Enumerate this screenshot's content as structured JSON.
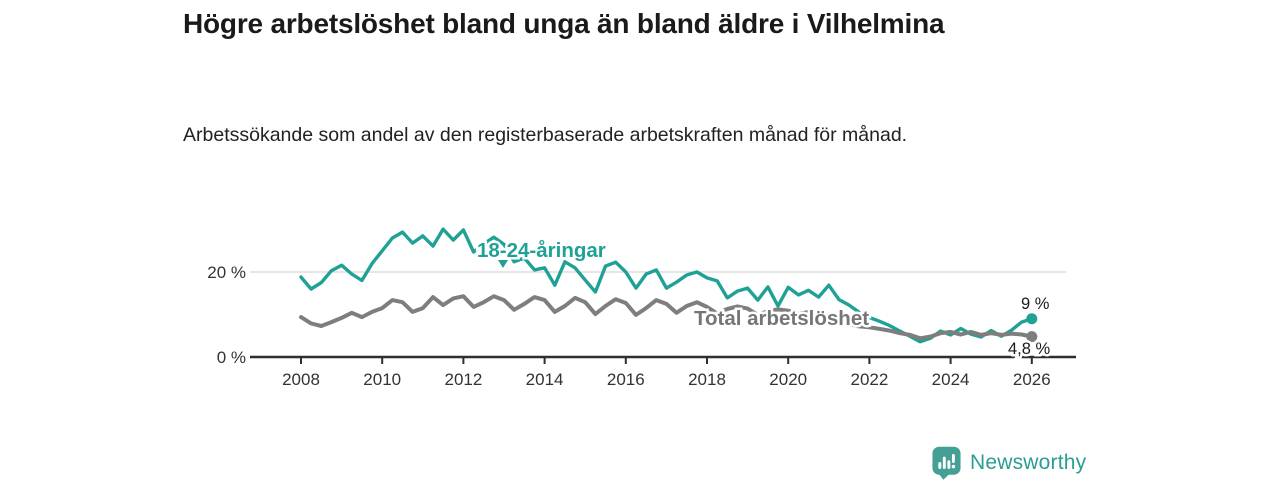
{
  "header": {
    "title": "Högre arbetslöshet bland unga än bland äldre i Vilhelmina",
    "subtitle": "Arbetssökande som andel av den registerbaserade arbetskraften månad för månad."
  },
  "chart_data": {
    "type": "line",
    "unit": "%",
    "x_start": 2008,
    "x_step": 0.25,
    "x_range": [
      2008,
      2026
    ],
    "ylim": [
      0,
      32
    ],
    "grid_y_values": [
      20
    ],
    "x_tick_labels": [
      "2008",
      "2010",
      "2012",
      "2014",
      "2016",
      "2018",
      "2020",
      "2022",
      "2024",
      "2026"
    ],
    "y_ticks": [
      {
        "value": 0,
        "label": "0 %"
      },
      {
        "value": 20,
        "label": "20 %"
      }
    ],
    "legend_position": "inline-annotations",
    "series": [
      {
        "id": "youth",
        "name": "18-24-åringar",
        "color": "#1fa195",
        "end_label": "9 %",
        "end_value": 9.0,
        "values": [
          18.8,
          16.0,
          17.5,
          20.3,
          21.6,
          19.5,
          18.0,
          22.0,
          25.0,
          28.0,
          29.4,
          26.8,
          28.5,
          26.1,
          30.1,
          27.5,
          29.9,
          24.7,
          26.6,
          28.2,
          26.5,
          22.4,
          23.3,
          20.5,
          21.0,
          16.9,
          22.4,
          21.0,
          18.1,
          15.3,
          21.4,
          22.3,
          20.0,
          16.2,
          19.5,
          20.5,
          16.2,
          17.6,
          19.3,
          20.0,
          18.6,
          17.9,
          13.9,
          15.5,
          16.2,
          13.4,
          16.5,
          12.0,
          16.4,
          14.6,
          15.7,
          14.1,
          16.9,
          13.5,
          12.2,
          10.5,
          9.3,
          8.4,
          7.4,
          6.1,
          4.9,
          3.6,
          4.4,
          6.1,
          5.2,
          6.7,
          5.4,
          4.7,
          6.2,
          4.9,
          6.3,
          8.2,
          9.0
        ]
      },
      {
        "id": "total",
        "name": "Total arbetslöshet",
        "color": "#7e7e7e",
        "end_label": "4,8 %",
        "end_value": 4.8,
        "values": [
          9.4,
          7.9,
          7.3,
          8.2,
          9.2,
          10.4,
          9.4,
          10.6,
          11.5,
          13.4,
          12.9,
          10.6,
          11.5,
          14.1,
          12.2,
          13.8,
          14.3,
          11.8,
          12.9,
          14.3,
          13.4,
          11.1,
          12.5,
          14.1,
          13.4,
          10.6,
          12.0,
          13.9,
          12.9,
          10.1,
          12.0,
          13.6,
          12.7,
          9.9,
          11.5,
          13.4,
          12.5,
          10.4,
          12.0,
          12.9,
          11.8,
          10.2,
          11.3,
          11.9,
          11.4,
          9.9,
          10.8,
          11.2,
          10.9,
          10.1,
          10.6,
          10.2,
          9.5,
          8.5,
          7.8,
          7.2,
          7.0,
          6.6,
          6.2,
          5.6,
          5.2,
          4.4,
          4.8,
          5.6,
          5.9,
          5.3,
          5.9,
          5.2,
          5.6,
          5.2,
          5.5,
          5.3,
          4.8
        ]
      }
    ]
  },
  "annotations": {
    "youth_series_label": "18-24-åringar",
    "total_series_label": "Total arbetslöshet",
    "youth_end_label": "9 %",
    "total_end_label": "4,8 %"
  },
  "colors": {
    "youth_line": "#1fa195",
    "total_line": "#7e7e7e",
    "axis": "#2e2e2e",
    "gridline": "#d8d8d8",
    "tick_label": "#333333",
    "end_label_text": "#1a1a1a",
    "brand_teal": "#2b9d93",
    "logo_fill": "#44a096"
  },
  "footer": {
    "brand": "Newsworthy",
    "logo_icon": "bar-chart-speech-bubble-icon"
  }
}
